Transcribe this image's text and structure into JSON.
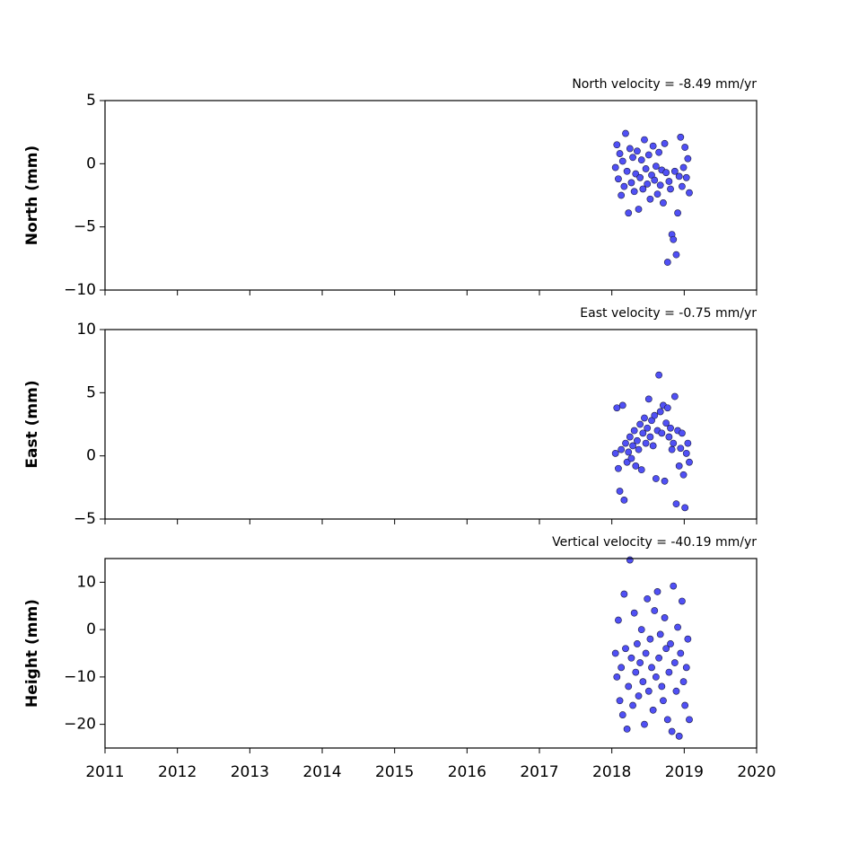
{
  "chart_data": [
    {
      "type": "scatter",
      "title": "North velocity = -8.49 mm/yr",
      "ylabel": "North (mm)",
      "color": "#5050f5",
      "x": [
        2018.05,
        2018.07,
        2018.09,
        2018.11,
        2018.13,
        2018.15,
        2018.17,
        2018.19,
        2018.21,
        2018.23,
        2018.25,
        2018.27,
        2018.29,
        2018.31,
        2018.33,
        2018.35,
        2018.37,
        2018.39,
        2018.41,
        2018.43,
        2018.45,
        2018.47,
        2018.49,
        2018.51,
        2018.53,
        2018.55,
        2018.57,
        2018.59,
        2018.61,
        2018.63,
        2018.65,
        2018.67,
        2018.69,
        2018.71,
        2018.73,
        2018.75,
        2018.77,
        2018.79,
        2018.81,
        2018.83,
        2018.85,
        2018.87,
        2018.89,
        2018.91,
        2018.93,
        2018.95,
        2018.97,
        2018.99,
        2019.01,
        2019.03,
        2019.05,
        2019.07
      ],
      "values": [
        -0.3,
        1.5,
        -1.2,
        0.8,
        -2.5,
        0.2,
        -1.8,
        2.4,
        -0.6,
        -3.9,
        1.2,
        -1.5,
        0.5,
        -2.2,
        -0.8,
        1.0,
        -3.6,
        -1.1,
        0.3,
        -2.0,
        1.9,
        -0.4,
        -1.6,
        0.7,
        -2.8,
        -0.9,
        1.4,
        -1.3,
        -0.2,
        -2.4,
        0.9,
        -1.7,
        -0.5,
        -3.1,
        1.6,
        -0.7,
        -7.8,
        -1.4,
        -2.0,
        -5.6,
        -6.0,
        -0.6,
        -7.2,
        -3.9,
        -1.0,
        2.1,
        -1.8,
        -0.3,
        1.3,
        -1.1,
        0.4,
        -2.3
      ],
      "xlim": [
        2011,
        2020
      ],
      "xticks": [
        2011,
        2012,
        2013,
        2014,
        2015,
        2016,
        2017,
        2018,
        2019,
        2020
      ],
      "ylim": [
        -10,
        5
      ],
      "yticks": [
        {
          "value": -10,
          "label": "−10"
        },
        {
          "value": -5,
          "label": "−5"
        },
        0,
        5
      ]
    },
    {
      "type": "scatter",
      "title": "East velocity = -0.75 mm/yr",
      "ylabel": "East (mm)",
      "color": "#5050f5",
      "x": [
        2018.05,
        2018.07,
        2018.09,
        2018.11,
        2018.13,
        2018.15,
        2018.17,
        2018.19,
        2018.21,
        2018.23,
        2018.25,
        2018.27,
        2018.29,
        2018.31,
        2018.33,
        2018.35,
        2018.37,
        2018.39,
        2018.41,
        2018.43,
        2018.45,
        2018.47,
        2018.49,
        2018.51,
        2018.53,
        2018.55,
        2018.57,
        2018.59,
        2018.61,
        2018.63,
        2018.65,
        2018.67,
        2018.69,
        2018.71,
        2018.73,
        2018.75,
        2018.77,
        2018.79,
        2018.81,
        2018.83,
        2018.85,
        2018.87,
        2018.89,
        2018.91,
        2018.93,
        2018.95,
        2018.97,
        2018.99,
        2019.01,
        2019.03,
        2019.05,
        2019.07
      ],
      "values": [
        0.2,
        3.8,
        -1.0,
        -2.8,
        0.5,
        4.0,
        -3.5,
        1.0,
        -0.5,
        0.3,
        1.5,
        -0.2,
        0.8,
        2.0,
        -0.8,
        1.2,
        0.5,
        2.5,
        -1.1,
        1.8,
        3.0,
        1.0,
        2.2,
        4.5,
        1.5,
        2.8,
        0.8,
        3.2,
        -1.8,
        2.0,
        6.4,
        3.5,
        1.8,
        4.0,
        -2.0,
        2.6,
        3.8,
        1.5,
        2.2,
        0.5,
        1.0,
        4.7,
        -3.8,
        2.0,
        -0.8,
        0.6,
        1.8,
        -1.5,
        -4.1,
        0.2,
        1.0,
        -0.5
      ],
      "xlim": [
        2011,
        2020
      ],
      "xticks": [
        2011,
        2012,
        2013,
        2014,
        2015,
        2016,
        2017,
        2018,
        2019,
        2020
      ],
      "ylim": [
        -5,
        10
      ],
      "yticks": [
        {
          "value": -5,
          "label": "−5"
        },
        0,
        5,
        10
      ]
    },
    {
      "type": "scatter",
      "title": "Vertical velocity = -40.19 mm/yr",
      "ylabel": "Height (mm)",
      "color": "#5050f5",
      "x": [
        2018.05,
        2018.07,
        2018.09,
        2018.11,
        2018.13,
        2018.15,
        2018.17,
        2018.19,
        2018.21,
        2018.23,
        2018.25,
        2018.27,
        2018.29,
        2018.31,
        2018.33,
        2018.35,
        2018.37,
        2018.39,
        2018.41,
        2018.43,
        2018.45,
        2018.47,
        2018.49,
        2018.51,
        2018.53,
        2018.55,
        2018.57,
        2018.59,
        2018.61,
        2018.63,
        2018.65,
        2018.67,
        2018.69,
        2018.71,
        2018.73,
        2018.75,
        2018.77,
        2018.79,
        2018.81,
        2018.83,
        2018.85,
        2018.87,
        2018.89,
        2018.91,
        2018.93,
        2018.95,
        2018.97,
        2018.99,
        2019.01,
        2019.03,
        2019.05,
        2019.07
      ],
      "values": [
        -5,
        -10,
        2,
        -15,
        -8,
        -18,
        7.5,
        -4,
        -21,
        -12,
        14.7,
        -6,
        -16,
        3.5,
        -9,
        -3,
        -14,
        -7,
        0,
        -11,
        -20,
        -5,
        6.5,
        -13,
        -2,
        -8,
        -17,
        4,
        -10,
        8,
        -6,
        -1,
        -12,
        -15,
        2.5,
        -4,
        -19,
        -9,
        -3,
        -21.5,
        9.2,
        -7,
        -13,
        0.5,
        -22.5,
        -5,
        6,
        -11,
        -16,
        -8,
        -2,
        -19
      ],
      "xlim": [
        2011,
        2020
      ],
      "xticks": [
        2011,
        2012,
        2013,
        2014,
        2015,
        2016,
        2017,
        2018,
        2019,
        2020
      ],
      "ylim": [
        -25,
        15
      ],
      "yticks": [
        {
          "value": -20,
          "label": "−20"
        },
        {
          "value": -10,
          "label": "−10"
        },
        0,
        10
      ]
    }
  ]
}
